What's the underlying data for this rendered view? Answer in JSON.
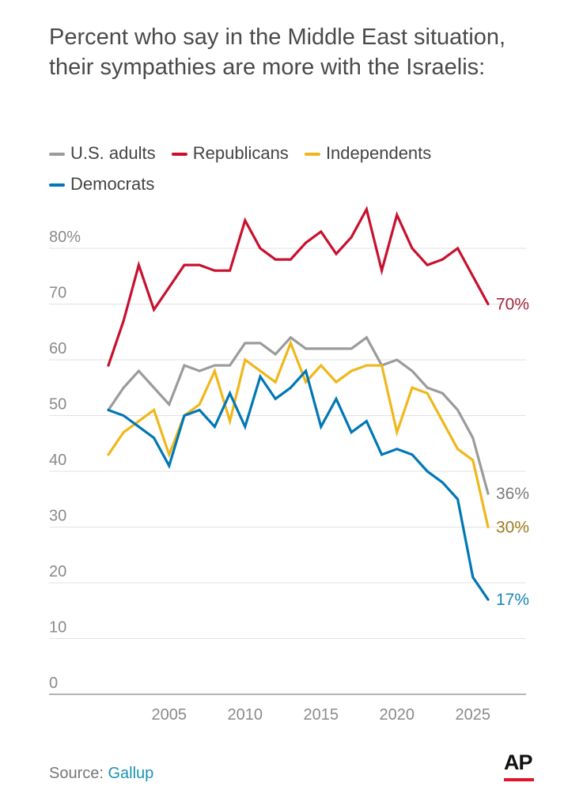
{
  "chart_data": {
    "type": "line",
    "title": "Percent who say in the Middle East situation, their sympathies are more with the Israelis:",
    "x": [
      2001,
      2002,
      2003,
      2004,
      2005,
      2006,
      2007,
      2008,
      2009,
      2010,
      2011,
      2012,
      2013,
      2014,
      2015,
      2016,
      2017,
      2018,
      2019,
      2020,
      2021,
      2022,
      2023,
      2024,
      2025,
      2026
    ],
    "series": [
      {
        "name": "U.S. adults",
        "color": "#9b9b9b",
        "label_color": "#7a7a7a",
        "end_label": "36%",
        "values": [
          51,
          55,
          58,
          55,
          52,
          59,
          58,
          59,
          59,
          63,
          63,
          61,
          64,
          62,
          62,
          62,
          62,
          64,
          59,
          60,
          58,
          55,
          54,
          51,
          46,
          36
        ]
      },
      {
        "name": "Republicans",
        "color": "#c8102e",
        "label_color": "#a3253c",
        "end_label": "70%",
        "values": [
          59,
          67,
          77,
          69,
          73,
          77,
          77,
          76,
          76,
          85,
          80,
          78,
          78,
          81,
          83,
          79,
          82,
          87,
          76,
          86,
          80,
          77,
          78,
          80,
          75,
          70
        ]
      },
      {
        "name": "Independents",
        "color": "#f0b71c",
        "label_color": "#9c7d1e",
        "end_label": "30%",
        "values": [
          43,
          47,
          49,
          51,
          43,
          50,
          52,
          58,
          49,
          60,
          58,
          56,
          63,
          56,
          59,
          56,
          58,
          59,
          59,
          47,
          55,
          54,
          49,
          44,
          42,
          30
        ]
      },
      {
        "name": "Democrats",
        "color": "#0077b6",
        "label_color": "#1a86b4",
        "end_label": "17%",
        "values": [
          51,
          50,
          48,
          46,
          41,
          50,
          51,
          48,
          54,
          48,
          57,
          53,
          55,
          58,
          48,
          53,
          47,
          49,
          43,
          44,
          43,
          40,
          38,
          35,
          21,
          17
        ]
      }
    ],
    "y_ticks": [
      {
        "v": 0,
        "label": "0"
      },
      {
        "v": 10,
        "label": "10"
      },
      {
        "v": 20,
        "label": "20"
      },
      {
        "v": 30,
        "label": "30"
      },
      {
        "v": 40,
        "label": "40"
      },
      {
        "v": 50,
        "label": "50"
      },
      {
        "v": 60,
        "label": "60"
      },
      {
        "v": 70,
        "label": "70"
      },
      {
        "v": 80,
        "label": "80%"
      }
    ],
    "x_ticks": [
      {
        "v": 2005,
        "label": "2005"
      },
      {
        "v": 2010,
        "label": "2010"
      },
      {
        "v": 2015,
        "label": "2015"
      },
      {
        "v": 2020,
        "label": "2020"
      },
      {
        "v": 2025,
        "label": "2025"
      }
    ],
    "ylim": [
      0,
      80
    ],
    "xlim": [
      2001,
      2026
    ],
    "grid": true,
    "legend_placement": "top-left"
  },
  "source": {
    "prefix": "Source: ",
    "name": "Gallup"
  },
  "logo": {
    "text": "AP"
  }
}
